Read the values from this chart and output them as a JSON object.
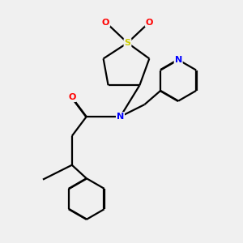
{
  "background_color": "#f0f0f0",
  "bond_color": "#000000",
  "atom_colors": {
    "N": "#0000ff",
    "O": "#ff0000",
    "S": "#cccc00",
    "C": "#000000"
  },
  "figsize": [
    3.0,
    3.0
  ],
  "dpi": 100
}
